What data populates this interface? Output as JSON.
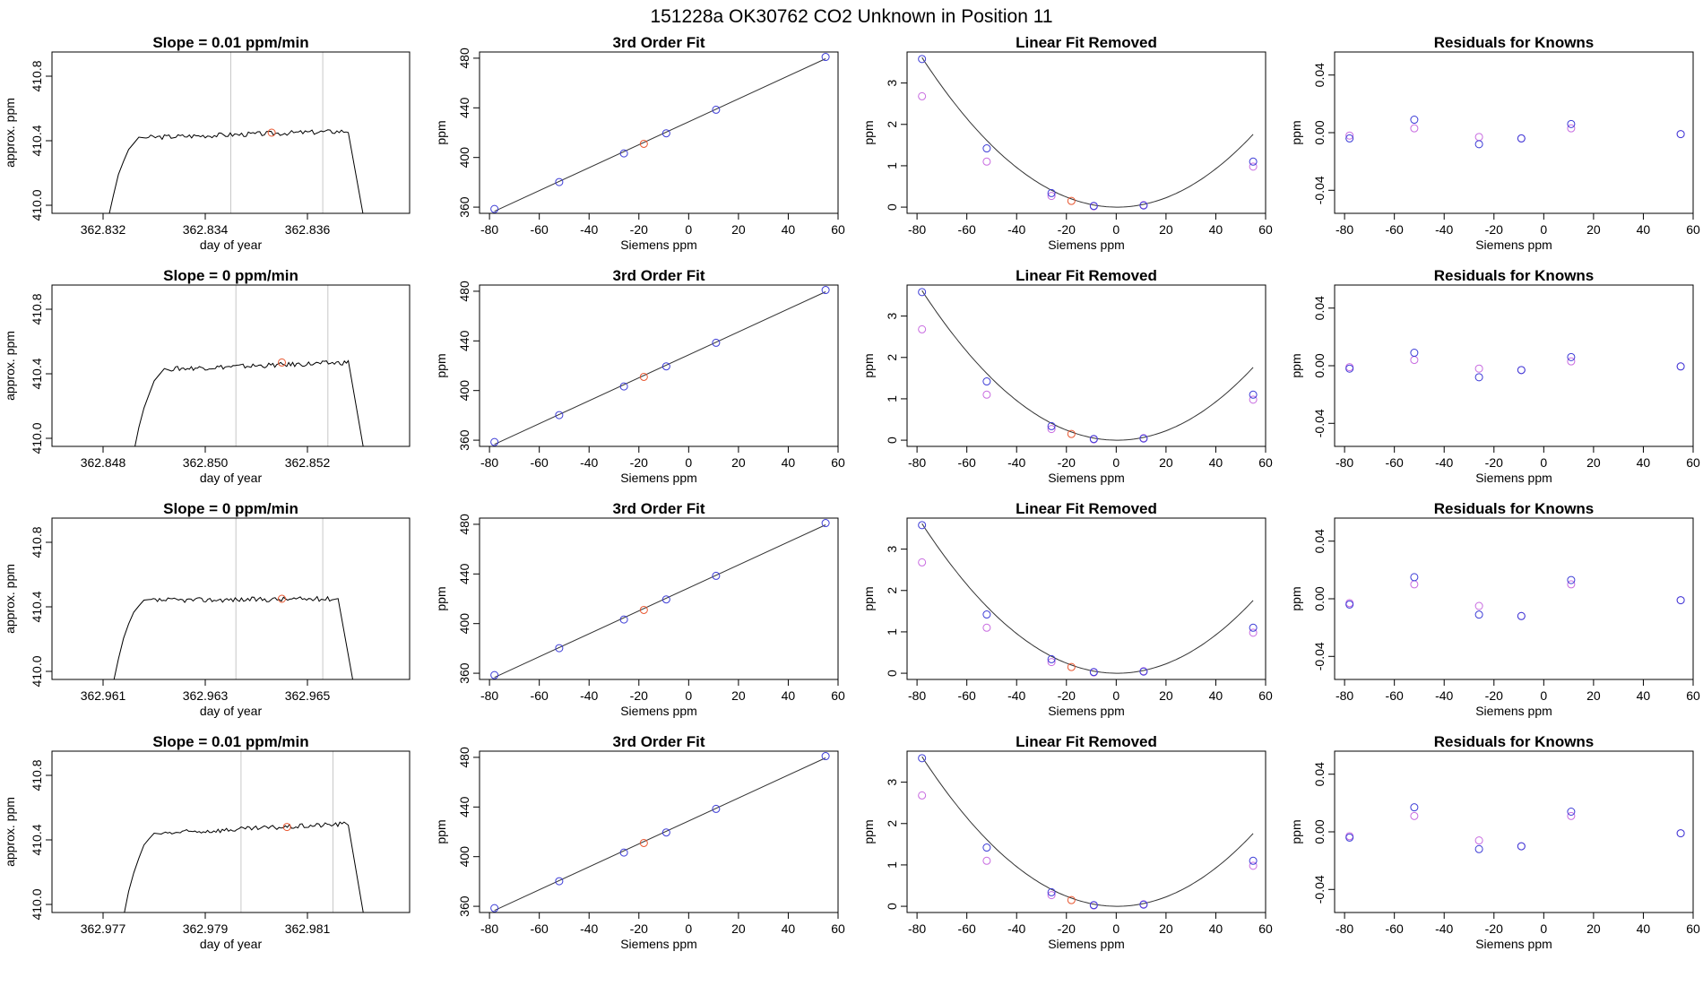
{
  "figure": {
    "title": "151228a      OK30762    CO2 Unknown in Position  11"
  },
  "style": {
    "trace_color": "#000000",
    "fit_color": "#333333",
    "known_color": "#3b3bd6",
    "prev_color": "#c86be0",
    "unknown_color": "#e8552e",
    "vline_color": "#c8c8c8"
  },
  "chart_data": [
    {
      "type": "line",
      "row": 1,
      "panel": "time-series",
      "title": "Slope =  0.01  ppm/min",
      "xlabel": "day of year",
      "ylabel": "approx. ppm",
      "xlim": [
        362.831,
        362.838
      ],
      "ylim": [
        409.95,
        410.95
      ],
      "xticks": [
        "362.832",
        "362.834",
        "362.836"
      ],
      "xtick_values": [
        362.832,
        362.834,
        362.836
      ],
      "yticks": [
        "410.0",
        "410.4",
        "410.8"
      ],
      "ytick_values": [
        410.0,
        410.4,
        410.8
      ],
      "vlines": [
        362.8345,
        362.8363
      ],
      "trace": {
        "start": 362.832,
        "rise_end": 362.8328,
        "plateau": 410.42,
        "plateau_end": 410.46,
        "drop_start": 362.8368,
        "drop_end": 362.8372
      },
      "marker": {
        "x": 362.8353,
        "y": 410.45
      }
    },
    {
      "type": "line",
      "row": 2,
      "panel": "time-series",
      "title": "Slope =  0  ppm/min",
      "xlabel": "day of year",
      "ylabel": "approx. ppm",
      "xlim": [
        362.847,
        362.854
      ],
      "ylim": [
        409.95,
        410.95
      ],
      "xticks": [
        "362.848",
        "362.850",
        "362.852"
      ],
      "xtick_values": [
        362.848,
        362.85,
        362.852
      ],
      "yticks": [
        "410.0",
        "410.4",
        "410.8"
      ],
      "ytick_values": [
        410.0,
        410.4,
        410.8
      ],
      "vlines": [
        362.8506,
        362.8524
      ],
      "trace": {
        "start": 362.8485,
        "rise_end": 362.8493,
        "plateau": 410.43,
        "plateau_end": 410.47,
        "drop_start": 362.8528,
        "drop_end": 362.8532
      },
      "marker": {
        "x": 362.8515,
        "y": 410.47
      }
    },
    {
      "type": "line",
      "row": 3,
      "panel": "time-series",
      "title": "Slope =  0  ppm/min",
      "xlabel": "day of year",
      "ylabel": "approx. ppm",
      "xlim": [
        362.96,
        362.967
      ],
      "ylim": [
        409.95,
        410.95
      ],
      "xticks": [
        "362.961",
        "362.963",
        "362.965"
      ],
      "xtick_values": [
        362.961,
        362.963,
        362.965
      ],
      "yticks": [
        "410.0",
        "410.4",
        "410.8"
      ],
      "ytick_values": [
        410.0,
        410.4,
        410.8
      ],
      "vlines": [
        362.9636,
        362.9653
      ],
      "trace": {
        "start": 362.9611,
        "rise_end": 362.9619,
        "plateau": 410.44,
        "plateau_end": 410.45,
        "drop_start": 362.9656,
        "drop_end": 362.966
      },
      "marker": {
        "x": 362.9645,
        "y": 410.45
      }
    },
    {
      "type": "line",
      "row": 4,
      "panel": "time-series",
      "title": "Slope =  0.01  ppm/min",
      "xlabel": "day of year",
      "ylabel": "approx. ppm",
      "xlim": [
        362.976,
        362.983
      ],
      "ylim": [
        409.95,
        410.95
      ],
      "xticks": [
        "362.977",
        "362.979",
        "362.981"
      ],
      "xtick_values": [
        362.977,
        362.979,
        362.981
      ],
      "yticks": [
        "410.0",
        "410.4",
        "410.8"
      ],
      "ytick_values": [
        410.0,
        410.4,
        410.8
      ],
      "vlines": [
        362.9797,
        362.9815
      ],
      "trace": {
        "start": 362.9773,
        "rise_end": 362.9781,
        "plateau": 410.44,
        "plateau_end": 410.5,
        "drop_start": 362.9818,
        "drop_end": 362.9822
      },
      "marker": {
        "x": 362.9806,
        "y": 410.48
      }
    },
    {
      "type": "scatter",
      "row": 1,
      "panel": "fit",
      "title": "3rd Order Fit",
      "xlabel": "Siemens ppm",
      "ylabel": "ppm",
      "xlim": [
        -84,
        60
      ],
      "ylim": [
        355,
        485
      ],
      "xticks": [
        "-80",
        "-60",
        "-40",
        "-20",
        "0",
        "20",
        "40",
        "60"
      ],
      "xtick_values": [
        -80,
        -60,
        -40,
        -20,
        0,
        20,
        40,
        60
      ],
      "yticks": [
        "360",
        "400",
        "440",
        "480"
      ],
      "ytick_values": [
        360,
        400,
        440,
        480
      ],
      "knowns": {
        "x": [
          -78,
          -52,
          -26,
          -9,
          11,
          55
        ],
        "y": [
          358.5,
          380.2,
          403.3,
          419.5,
          438.5,
          481.0
        ]
      },
      "unknown": {
        "x": [
          -18
        ],
        "y": [
          411.0
        ]
      }
    },
    {
      "type": "scatter",
      "row": 2,
      "panel": "fit",
      "title": "3rd Order Fit",
      "xlabel": "Siemens ppm",
      "ylabel": "ppm",
      "xlim": [
        -84,
        60
      ],
      "ylim": [
        355,
        485
      ],
      "xticks": [
        "-80",
        "-60",
        "-40",
        "-20",
        "0",
        "20",
        "40",
        "60"
      ],
      "xtick_values": [
        -80,
        -60,
        -40,
        -20,
        0,
        20,
        40,
        60
      ],
      "yticks": [
        "360",
        "400",
        "440",
        "480"
      ],
      "ytick_values": [
        360,
        400,
        440,
        480
      ],
      "knowns": {
        "x": [
          -78,
          -52,
          -26,
          -9,
          11,
          55
        ],
        "y": [
          358.5,
          380.2,
          403.3,
          419.5,
          438.5,
          481.0
        ]
      },
      "unknown": {
        "x": [
          -18
        ],
        "y": [
          411.0
        ]
      }
    },
    {
      "type": "scatter",
      "row": 3,
      "panel": "fit",
      "title": "3rd Order Fit",
      "xlabel": "Siemens ppm",
      "ylabel": "ppm",
      "xlim": [
        -84,
        60
      ],
      "ylim": [
        355,
        485
      ],
      "xticks": [
        "-80",
        "-60",
        "-40",
        "-20",
        "0",
        "20",
        "40",
        "60"
      ],
      "xtick_values": [
        -80,
        -60,
        -40,
        -20,
        0,
        20,
        40,
        60
      ],
      "yticks": [
        "360",
        "400",
        "440",
        "480"
      ],
      "ytick_values": [
        360,
        400,
        440,
        480
      ],
      "knowns": {
        "x": [
          -78,
          -52,
          -26,
          -9,
          11,
          55
        ],
        "y": [
          358.5,
          380.2,
          403.3,
          419.5,
          438.5,
          481.0
        ]
      },
      "unknown": {
        "x": [
          -18
        ],
        "y": [
          411.0
        ]
      }
    },
    {
      "type": "scatter",
      "row": 4,
      "panel": "fit",
      "title": "3rd Order Fit",
      "xlabel": "Siemens ppm",
      "ylabel": "ppm",
      "xlim": [
        -84,
        60
      ],
      "ylim": [
        355,
        485
      ],
      "xticks": [
        "-80",
        "-60",
        "-40",
        "-20",
        "0",
        "20",
        "40",
        "60"
      ],
      "xtick_values": [
        -80,
        -60,
        -40,
        -20,
        0,
        20,
        40,
        60
      ],
      "yticks": [
        "360",
        "400",
        "440",
        "480"
      ],
      "ytick_values": [
        360,
        400,
        440,
        480
      ],
      "knowns": {
        "x": [
          -78,
          -52,
          -26,
          -9,
          11,
          55
        ],
        "y": [
          358.5,
          380.2,
          403.3,
          419.5,
          438.5,
          481.0
        ]
      },
      "unknown": {
        "x": [
          -18
        ],
        "y": [
          411.0
        ]
      }
    },
    {
      "type": "scatter",
      "row": 1,
      "panel": "linear-removed",
      "title": "Linear Fit Removed",
      "xlabel": "Siemens ppm",
      "ylabel": "ppm",
      "xlim": [
        -84,
        60
      ],
      "ylim": [
        -0.15,
        3.75
      ],
      "xticks": [
        "-80",
        "-60",
        "-40",
        "-20",
        "0",
        "20",
        "40",
        "60"
      ],
      "xtick_values": [
        -80,
        -60,
        -40,
        -20,
        0,
        20,
        40,
        60
      ],
      "yticks": [
        "0",
        "1",
        "2",
        "3"
      ],
      "ytick_values": [
        0,
        1,
        2,
        3
      ],
      "curve": {
        "a": 0.000589,
        "b": -0.0004,
        "c": 0.0
      },
      "knowns": {
        "x": [
          -78,
          -52,
          -26,
          -9,
          11,
          55
        ],
        "y": [
          3.58,
          1.42,
          0.34,
          0.03,
          0.04,
          1.1
        ]
      },
      "previous": {
        "x": [
          -78,
          -52,
          -26,
          -9,
          11,
          55
        ],
        "y": [
          2.68,
          1.1,
          0.27,
          0.02,
          0.05,
          0.98
        ]
      },
      "unknown": {
        "x": [
          -18
        ],
        "y": [
          0.15
        ]
      }
    },
    {
      "type": "scatter",
      "row": 2,
      "panel": "linear-removed",
      "title": "Linear Fit Removed",
      "xlabel": "Siemens ppm",
      "ylabel": "ppm",
      "xlim": [
        -84,
        60
      ],
      "ylim": [
        -0.15,
        3.75
      ],
      "xticks": [
        "-80",
        "-60",
        "-40",
        "-20",
        "0",
        "20",
        "40",
        "60"
      ],
      "xtick_values": [
        -80,
        -60,
        -40,
        -20,
        0,
        20,
        40,
        60
      ],
      "yticks": [
        "0",
        "1",
        "2",
        "3"
      ],
      "ytick_values": [
        0,
        1,
        2,
        3
      ],
      "curve": {
        "a": 0.000589,
        "b": -0.0004,
        "c": 0.0
      },
      "knowns": {
        "x": [
          -78,
          -52,
          -26,
          -9,
          11,
          55
        ],
        "y": [
          3.58,
          1.42,
          0.34,
          0.03,
          0.04,
          1.1
        ]
      },
      "previous": {
        "x": [
          -78,
          -52,
          -26,
          -9,
          11,
          55
        ],
        "y": [
          2.68,
          1.1,
          0.27,
          0.02,
          0.05,
          0.98
        ]
      },
      "unknown": {
        "x": [
          -18
        ],
        "y": [
          0.15
        ]
      }
    },
    {
      "type": "scatter",
      "row": 3,
      "panel": "linear-removed",
      "title": "Linear Fit Removed",
      "xlabel": "Siemens ppm",
      "ylabel": "ppm",
      "xlim": [
        -84,
        60
      ],
      "ylim": [
        -0.15,
        3.75
      ],
      "xticks": [
        "-80",
        "-60",
        "-40",
        "-20",
        "0",
        "20",
        "40",
        "60"
      ],
      "xtick_values": [
        -80,
        -60,
        -40,
        -20,
        0,
        20,
        40,
        60
      ],
      "yticks": [
        "0",
        "1",
        "2",
        "3"
      ],
      "ytick_values": [
        0,
        1,
        2,
        3
      ],
      "curve": {
        "a": 0.000589,
        "b": -0.0004,
        "c": 0.0
      },
      "knowns": {
        "x": [
          -78,
          -52,
          -26,
          -9,
          11,
          55
        ],
        "y": [
          3.58,
          1.42,
          0.34,
          0.03,
          0.04,
          1.1
        ]
      },
      "previous": {
        "x": [
          -78,
          -52,
          -26,
          -9,
          11,
          55
        ],
        "y": [
          2.68,
          1.1,
          0.27,
          0.02,
          0.05,
          0.98
        ]
      },
      "unknown": {
        "x": [
          -18
        ],
        "y": [
          0.15
        ]
      }
    },
    {
      "type": "scatter",
      "row": 4,
      "panel": "linear-removed",
      "title": "Linear Fit Removed",
      "xlabel": "Siemens ppm",
      "ylabel": "ppm",
      "xlim": [
        -84,
        60
      ],
      "ylim": [
        -0.15,
        3.75
      ],
      "xticks": [
        "-80",
        "-60",
        "-40",
        "-20",
        "0",
        "20",
        "40",
        "60"
      ],
      "xtick_values": [
        -80,
        -60,
        -40,
        -20,
        0,
        20,
        40,
        60
      ],
      "yticks": [
        "0",
        "1",
        "2",
        "3"
      ],
      "ytick_values": [
        0,
        1,
        2,
        3
      ],
      "curve": {
        "a": 0.000589,
        "b": -0.0004,
        "c": 0.0
      },
      "knowns": {
        "x": [
          -78,
          -52,
          -26,
          -9,
          11,
          55
        ],
        "y": [
          3.58,
          1.42,
          0.34,
          0.03,
          0.04,
          1.1
        ]
      },
      "previous": {
        "x": [
          -78,
          -52,
          -26,
          -9,
          11,
          55
        ],
        "y": [
          2.68,
          1.1,
          0.27,
          0.02,
          0.05,
          0.98
        ]
      },
      "unknown": {
        "x": [
          -18
        ],
        "y": [
          0.15
        ]
      }
    },
    {
      "type": "scatter",
      "row": 1,
      "panel": "residuals",
      "title": "Residuals for Knowns",
      "xlabel": "Siemens ppm",
      "ylabel": "ppm",
      "xlim": [
        -84,
        60
      ],
      "ylim": [
        -0.056,
        0.056
      ],
      "xticks": [
        "-80",
        "-60",
        "-40",
        "-20",
        "0",
        "20",
        "40",
        "60"
      ],
      "xtick_values": [
        -80,
        -60,
        -40,
        -20,
        0,
        20,
        40,
        60
      ],
      "yticks": [
        "-0.04",
        "0.00",
        "0.04"
      ],
      "ytick_values": [
        -0.04,
        0.0,
        0.04
      ],
      "knowns": {
        "x": [
          -78,
          -52,
          -26,
          -9,
          11,
          55
        ],
        "y": [
          -0.004,
          0.009,
          -0.008,
          -0.004,
          0.006,
          -0.001
        ]
      },
      "previous": {
        "x": [
          -78,
          -52,
          -26,
          -9,
          11,
          55
        ],
        "y": [
          -0.002,
          0.003,
          -0.003,
          -0.004,
          0.003,
          -0.001
        ]
      }
    },
    {
      "type": "scatter",
      "row": 2,
      "panel": "residuals",
      "title": "Residuals for Knowns",
      "xlabel": "Siemens ppm",
      "ylabel": "ppm",
      "xlim": [
        -84,
        60
      ],
      "ylim": [
        -0.056,
        0.056
      ],
      "xticks": [
        "-80",
        "-60",
        "-40",
        "-20",
        "0",
        "20",
        "40",
        "60"
      ],
      "xtick_values": [
        -80,
        -60,
        -40,
        -20,
        0,
        20,
        40,
        60
      ],
      "yticks": [
        "-0.04",
        "0.00",
        "0.04"
      ],
      "ytick_values": [
        -0.04,
        0.0,
        0.04
      ],
      "knowns": {
        "x": [
          -78,
          -52,
          -26,
          -9,
          11,
          55
        ],
        "y": [
          -0.002,
          0.009,
          -0.008,
          -0.003,
          0.006,
          -0.0005
        ]
      },
      "previous": {
        "x": [
          -78,
          -52,
          -26,
          -9,
          11,
          55
        ],
        "y": [
          -0.001,
          0.004,
          -0.002,
          -0.003,
          0.003,
          -0.0005
        ]
      }
    },
    {
      "type": "scatter",
      "row": 3,
      "panel": "residuals",
      "title": "Residuals for Knowns",
      "xlabel": "Siemens ppm",
      "ylabel": "ppm",
      "xlim": [
        -84,
        60
      ],
      "ylim": [
        -0.056,
        0.056
      ],
      "xticks": [
        "-80",
        "-60",
        "-40",
        "-20",
        "0",
        "20",
        "40",
        "60"
      ],
      "xtick_values": [
        -80,
        -60,
        -40,
        -20,
        0,
        20,
        40,
        60
      ],
      "yticks": [
        "-0.04",
        "0.00",
        "0.04"
      ],
      "ytick_values": [
        -0.04,
        0.0,
        0.04
      ],
      "knowns": {
        "x": [
          -78,
          -52,
          -26,
          -9,
          11,
          55
        ],
        "y": [
          -0.004,
          0.015,
          -0.011,
          -0.012,
          0.013,
          -0.001
        ]
      },
      "previous": {
        "x": [
          -78,
          -52,
          -26,
          -9,
          11,
          55
        ],
        "y": [
          -0.003,
          0.01,
          -0.005,
          -0.012,
          0.01,
          -0.001
        ]
      }
    },
    {
      "type": "scatter",
      "row": 4,
      "panel": "residuals",
      "title": "Residuals for Knowns",
      "xlabel": "Siemens ppm",
      "ylabel": "ppm",
      "xlim": [
        -84,
        60
      ],
      "ylim": [
        -0.056,
        0.056
      ],
      "xticks": [
        "-80",
        "-60",
        "-40",
        "-20",
        "0",
        "20",
        "40",
        "60"
      ],
      "xtick_values": [
        -80,
        -60,
        -40,
        -20,
        0,
        20,
        40,
        60
      ],
      "yticks": [
        "-0.04",
        "0.00",
        "0.04"
      ],
      "ytick_values": [
        -0.04,
        0.0,
        0.04
      ],
      "knowns": {
        "x": [
          -78,
          -52,
          -26,
          -9,
          11,
          55
        ],
        "y": [
          -0.004,
          0.017,
          -0.012,
          -0.01,
          0.014,
          -0.001
        ]
      },
      "previous": {
        "x": [
          -78,
          -52,
          -26,
          -9,
          11,
          55
        ],
        "y": [
          -0.003,
          0.011,
          -0.006,
          -0.01,
          0.011,
          -0.001
        ]
      }
    }
  ]
}
